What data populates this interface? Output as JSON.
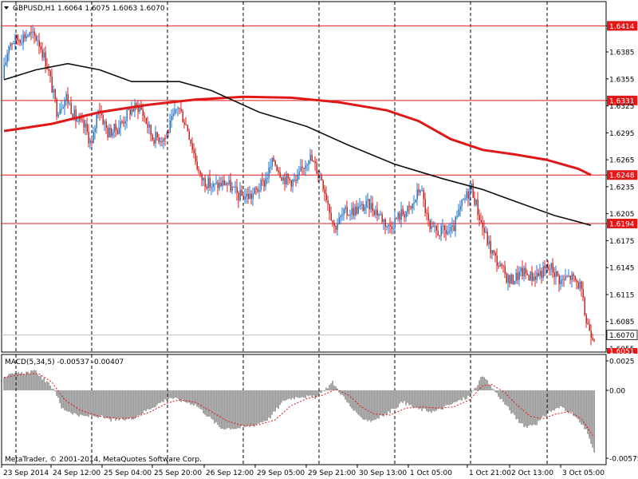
{
  "header": {
    "symbol": "GBPUSD,H1",
    "ohlc": "1.6064 1.6075 1.6063 1.6070"
  },
  "macd": {
    "label": "MACD(5,34,5) -0.00537 -0.00407",
    "ticks": [
      "0.0025",
      "0.00",
      "-0.00575"
    ]
  },
  "copyright": "MetaTrader, © 2001-2014, MetaQuotes Software Corp.",
  "colors": {
    "bull": "#1e78d6",
    "bear": "#e01818",
    "ma_fast": "#e01818",
    "ma_slow": "#101010",
    "histogram": "#808080",
    "signal": "#e01818",
    "level_line": "#e01818",
    "current_price": "#c0c0c0"
  },
  "chart_data": [
    {
      "type": "line",
      "subtype": "candlestick",
      "x_ticks": [
        "23 Sep 2014",
        "24 Sep 12:00",
        "25 Sep 04:00",
        "25 Sep 20:00",
        "26 Sep 12:00",
        "29 Sep 05:00",
        "29 Sep 21:00",
        "30 Sep 13:00",
        "1 Oct 05:00",
        "1 Oct 21:00",
        "2 Oct 13:00",
        "3 Oct 05:00"
      ],
      "y_ticks": [
        "1.6414",
        "1.6385",
        "1.6355",
        "1.6331",
        "1.6325",
        "1.6295",
        "1.6265",
        "1.6248",
        "1.6235",
        "1.6205",
        "1.6194",
        "1.6175",
        "1.6145",
        "1.6115",
        "1.6085",
        "1.6070",
        "1.6055"
      ],
      "ylim": [
        1.6051,
        1.6441
      ],
      "grid": true,
      "levels": [
        1.6414,
        1.6331,
        1.6248,
        1.6194
      ],
      "level_labels": [
        "1.6414",
        "1.6331",
        "1.6248",
        "1.6194"
      ],
      "current_price": 1.607,
      "current_price_label": "1.6070",
      "bottom_label": "1.6051",
      "anchors": [
        [
          0,
          1.6355
        ],
        [
          4,
          1.6395
        ],
        [
          10,
          1.64
        ],
        [
          16,
          1.6405
        ],
        [
          22,
          1.64
        ],
        [
          28,
          1.637
        ],
        [
          34,
          1.632
        ],
        [
          40,
          1.6335
        ],
        [
          46,
          1.631
        ],
        [
          52,
          1.63
        ],
        [
          56,
          1.628
        ],
        [
          60,
          1.6325
        ],
        [
          66,
          1.6295
        ],
        [
          72,
          1.63
        ],
        [
          80,
          1.632
        ],
        [
          86,
          1.6325
        ],
        [
          94,
          1.629
        ],
        [
          102,
          1.629
        ],
        [
          110,
          1.6325
        ],
        [
          116,
          1.63
        ],
        [
          124,
          1.6245
        ],
        [
          132,
          1.6235
        ],
        [
          140,
          1.624
        ],
        [
          148,
          1.6225
        ],
        [
          156,
          1.6225
        ],
        [
          164,
          1.624
        ],
        [
          170,
          1.6265
        ],
        [
          176,
          1.6245
        ],
        [
          184,
          1.624
        ],
        [
          192,
          1.627
        ],
        [
          200,
          1.6245
        ],
        [
          208,
          1.619
        ],
        [
          214,
          1.6205
        ],
        [
          222,
          1.621
        ],
        [
          230,
          1.6215
        ],
        [
          236,
          1.6205
        ],
        [
          242,
          1.619
        ],
        [
          250,
          1.6205
        ],
        [
          256,
          1.621
        ],
        [
          262,
          1.6235
        ],
        [
          268,
          1.6185
        ],
        [
          276,
          1.6185
        ],
        [
          282,
          1.6185
        ],
        [
          288,
          1.6215
        ],
        [
          294,
          1.6235
        ],
        [
          300,
          1.6195
        ],
        [
          306,
          1.6165
        ],
        [
          312,
          1.6145
        ],
        [
          318,
          1.613
        ],
        [
          326,
          1.614
        ],
        [
          332,
          1.6135
        ],
        [
          338,
          1.614
        ],
        [
          344,
          1.6145
        ],
        [
          350,
          1.613
        ],
        [
          356,
          1.6135
        ],
        [
          362,
          1.6125
        ],
        [
          366,
          1.6085
        ],
        [
          370,
          1.607
        ]
      ],
      "series": [
        {
          "name": "",
          "kind": "ma_fast",
          "points": [
            [
              0,
              1.6297
            ],
            [
              30,
              1.6305
            ],
            [
              60,
              1.6318
            ],
            [
              90,
              1.6326
            ],
            [
              120,
              1.6332
            ],
            [
              150,
              1.6335
            ],
            [
              180,
              1.6334
            ],
            [
              210,
              1.6329
            ],
            [
              240,
              1.632
            ],
            [
              260,
              1.6308
            ],
            [
              280,
              1.6288
            ],
            [
              300,
              1.6276
            ],
            [
              320,
              1.6271
            ],
            [
              340,
              1.6265
            ],
            [
              360,
              1.6255
            ],
            [
              368,
              1.6248
            ]
          ]
        },
        {
          "name": "",
          "kind": "ma_slow",
          "points": [
            [
              0,
              1.6354
            ],
            [
              20,
              1.6365
            ],
            [
              40,
              1.6372
            ],
            [
              60,
              1.6365
            ],
            [
              80,
              1.6352
            ],
            [
              110,
              1.6352
            ],
            [
              130,
              1.6342
            ],
            [
              160,
              1.6318
            ],
            [
              190,
              1.6302
            ],
            [
              215,
              1.6282
            ],
            [
              245,
              1.626
            ],
            [
              275,
              1.6244
            ],
            [
              300,
              1.6232
            ],
            [
              320,
              1.6219
            ],
            [
              345,
              1.6203
            ],
            [
              360,
              1.6196
            ],
            [
              368,
              1.6192
            ]
          ]
        }
      ]
    },
    {
      "type": "bar",
      "subtype": "histogram",
      "ylim": [
        -0.00575,
        0.0025
      ],
      "anchors": [
        [
          0,
          0.0012
        ],
        [
          12,
          0.0015
        ],
        [
          20,
          0.0016
        ],
        [
          32,
          0.0
        ],
        [
          36,
          -0.0015
        ],
        [
          48,
          -0.0022
        ],
        [
          60,
          -0.0022
        ],
        [
          66,
          -0.0025
        ],
        [
          74,
          -0.0025
        ],
        [
          80,
          -0.0024
        ],
        [
          88,
          -0.0018
        ],
        [
          96,
          -0.0012
        ],
        [
          104,
          -0.0006
        ],
        [
          112,
          -0.0009
        ],
        [
          120,
          -0.0012
        ],
        [
          128,
          -0.0022
        ],
        [
          136,
          -0.0032
        ],
        [
          146,
          -0.0032
        ],
        [
          156,
          -0.003
        ],
        [
          166,
          -0.0024
        ],
        [
          176,
          -0.0008
        ],
        [
          186,
          -0.0005
        ],
        [
          196,
          -0.0006
        ],
        [
          206,
          0.0007
        ],
        [
          214,
          -0.0008
        ],
        [
          222,
          -0.0022
        ],
        [
          230,
          -0.0026
        ],
        [
          240,
          -0.002
        ],
        [
          250,
          -0.001
        ],
        [
          260,
          -0.0016
        ],
        [
          270,
          -0.0018
        ],
        [
          280,
          -0.0012
        ],
        [
          292,
          -0.0005
        ],
        [
          300,
          0.0012
        ],
        [
          305,
          0.0004
        ],
        [
          312,
          -0.0008
        ],
        [
          320,
          -0.0022
        ],
        [
          326,
          -0.0031
        ],
        [
          334,
          -0.0028
        ],
        [
          342,
          -0.0018
        ],
        [
          350,
          -0.0014
        ],
        [
          358,
          -0.0022
        ],
        [
          366,
          -0.0036
        ],
        [
          370,
          -0.0054
        ]
      ],
      "signal_anchors": [
        [
          0,
          0.0011
        ],
        [
          14,
          0.0014
        ],
        [
          22,
          0.0014
        ],
        [
          30,
          0.0007
        ],
        [
          38,
          -0.0008
        ],
        [
          48,
          -0.0017
        ],
        [
          60,
          -0.0022
        ],
        [
          72,
          -0.0024
        ],
        [
          82,
          -0.0023
        ],
        [
          92,
          -0.0018
        ],
        [
          102,
          -0.0011
        ],
        [
          110,
          -0.0008
        ],
        [
          120,
          -0.001
        ],
        [
          130,
          -0.0018
        ],
        [
          140,
          -0.0026
        ],
        [
          150,
          -0.003
        ],
        [
          160,
          -0.0029
        ],
        [
          170,
          -0.0025
        ],
        [
          180,
          -0.0013
        ],
        [
          190,
          -0.0007
        ],
        [
          200,
          -0.0004
        ],
        [
          208,
          0.0001
        ],
        [
          216,
          -0.0004
        ],
        [
          224,
          -0.0014
        ],
        [
          232,
          -0.002
        ],
        [
          242,
          -0.0021
        ],
        [
          252,
          -0.0015
        ],
        [
          262,
          -0.0014
        ],
        [
          272,
          -0.0015
        ],
        [
          282,
          -0.0014
        ],
        [
          292,
          -0.0008
        ],
        [
          300,
          0.0004
        ],
        [
          306,
          0.0005
        ],
        [
          314,
          -0.0002
        ],
        [
          322,
          -0.0013
        ],
        [
          330,
          -0.0022
        ],
        [
          338,
          -0.0024
        ],
        [
          346,
          -0.002
        ],
        [
          354,
          -0.0018
        ],
        [
          362,
          -0.0024
        ],
        [
          370,
          -0.004
        ]
      ]
    }
  ]
}
